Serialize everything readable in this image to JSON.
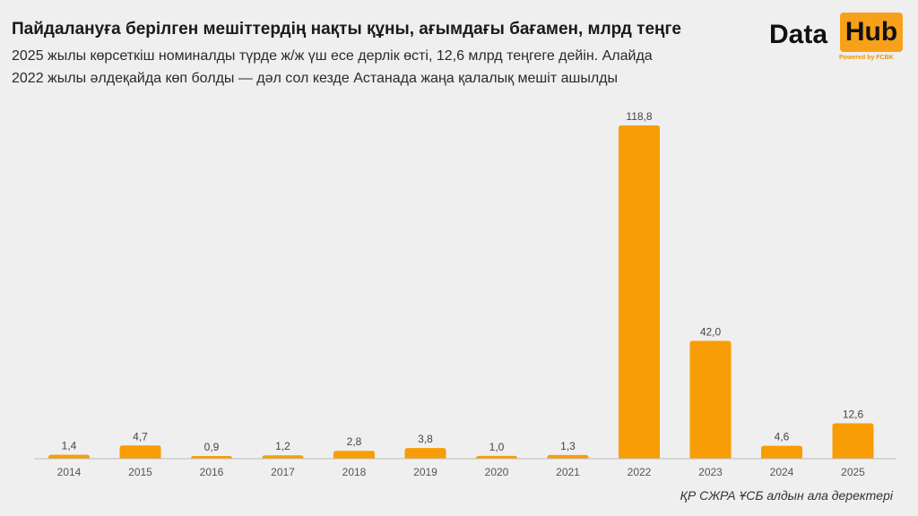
{
  "header": {
    "title": "Пайдалануға берілген мешіттердің нақты құны, ағымдағы бағамен, млрд теңге",
    "subtitle_line1": "2025 жылы көрсеткіш номиналды түрде ж/ж үш есе дерлік өсті, 12,6 млрд теңгеге дейін. Алайда",
    "subtitle_line2": "2022 жылы әлдеқайда көп болды — дәл сол кезде Астанада жаңа қалалық мешіт ашылды"
  },
  "logo": {
    "word1": "Data",
    "word2": "Hub",
    "tagline": "Powered by FCBK"
  },
  "source": "ҚР СЖРА ҰСБ алдын ала деректері",
  "colors": {
    "bar": "#f99d06",
    "axis": "#bbbbbb"
  },
  "chart_data": {
    "type": "bar",
    "title": "Пайдалануға берілген мешіттердің нақты құны, ағымдағы бағамен, млрд теңге",
    "categories": [
      "2014",
      "2015",
      "2016",
      "2017",
      "2018",
      "2019",
      "2020",
      "2021",
      "2022",
      "2023",
      "2024",
      "2025"
    ],
    "values": [
      1.4,
      4.7,
      0.9,
      1.2,
      2.8,
      3.8,
      1.0,
      1.3,
      118.8,
      42.0,
      4.6,
      12.6
    ],
    "labels": [
      "1,4",
      "4,7",
      "0,9",
      "1,2",
      "2,8",
      "3,8",
      "1,0",
      "1,3",
      "118,8",
      "42,0",
      "4,6",
      "12,6"
    ],
    "xlabel": "",
    "ylabel": "",
    "ylim": [
      0,
      118.8
    ],
    "grid": false
  }
}
